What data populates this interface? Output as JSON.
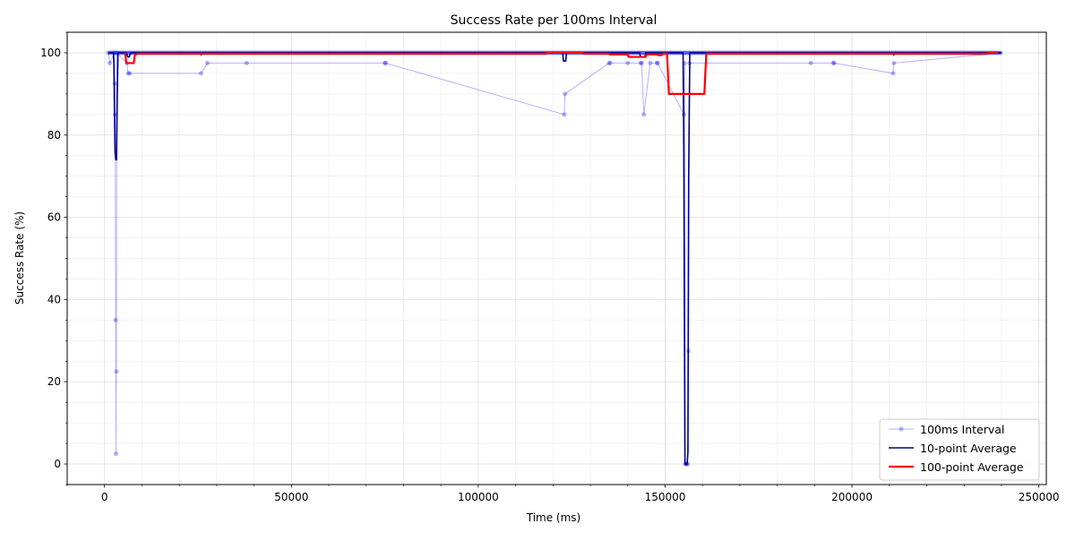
{
  "chart_data": {
    "type": "line",
    "title": "Success Rate per 100ms Interval",
    "xlabel": "Time (ms)",
    "ylabel": "Success Rate (%)",
    "xlim": [
      -10000,
      252000
    ],
    "ylim": [
      -5,
      105
    ],
    "x_ticks": [
      0,
      50000,
      100000,
      150000,
      200000,
      250000
    ],
    "x_tick_labels": [
      "0",
      "50000",
      "100000",
      "150000",
      "200000",
      "250000"
    ],
    "y_ticks": [
      0,
      20,
      40,
      60,
      80,
      100
    ],
    "y_tick_labels": [
      "0",
      "20",
      "40",
      "60",
      "80",
      "100"
    ],
    "x_minor_step": 10000,
    "y_minor_step": 5,
    "grid": true,
    "legend_position": "lower-right",
    "series": [
      {
        "name": "100ms Interval",
        "color": "#0000ff",
        "style": "line-with-markers",
        "base_value": 100,
        "x_range": [
          1000,
          240000
        ],
        "dips": [
          {
            "x": 1400,
            "y": 97.5
          },
          {
            "x": 2600,
            "y": 100
          },
          {
            "x": 2750,
            "y": 92.5
          },
          {
            "x": 2850,
            "y": 85
          },
          {
            "x": 2950,
            "y": 35
          },
          {
            "x": 3050,
            "y": 2.5
          },
          {
            "x": 3150,
            "y": 22.5
          },
          {
            "x": 3300,
            "y": 100
          },
          {
            "x": 6000,
            "y": 97.5
          },
          {
            "x": 6300,
            "y": 95
          },
          {
            "x": 6700,
            "y": 95
          },
          {
            "x": 25800,
            "y": 95
          },
          {
            "x": 27500,
            "y": 97.5
          },
          {
            "x": 38000,
            "y": 97.5
          },
          {
            "x": 75000,
            "y": 97.5
          },
          {
            "x": 75200,
            "y": 97.5
          },
          {
            "x": 123000,
            "y": 85
          },
          {
            "x": 123200,
            "y": 90
          },
          {
            "x": 135000,
            "y": 97.5
          },
          {
            "x": 135300,
            "y": 97.5
          },
          {
            "x": 140000,
            "y": 97.5
          },
          {
            "x": 143500,
            "y": 97.5
          },
          {
            "x": 143700,
            "y": 97.5
          },
          {
            "x": 144300,
            "y": 85
          },
          {
            "x": 146000,
            "y": 97.5
          },
          {
            "x": 147800,
            "y": 97.5
          },
          {
            "x": 148000,
            "y": 97.5
          },
          {
            "x": 155000,
            "y": 85
          },
          {
            "x": 155200,
            "y": 97.5
          },
          {
            "x": 155400,
            "y": 0
          },
          {
            "x": 155600,
            "y": 0
          },
          {
            "x": 155800,
            "y": 0
          },
          {
            "x": 156000,
            "y": 0
          },
          {
            "x": 156200,
            "y": 27.5
          },
          {
            "x": 156500,
            "y": 97.5
          },
          {
            "x": 189000,
            "y": 97.5
          },
          {
            "x": 195000,
            "y": 97.5
          },
          {
            "x": 195200,
            "y": 97.5
          },
          {
            "x": 211000,
            "y": 95
          },
          {
            "x": 211200,
            "y": 97.5
          }
        ]
      },
      {
        "name": "10-point Average",
        "color": "#00008b",
        "style": "line",
        "points": [
          [
            1000,
            100
          ],
          [
            2400,
            100
          ],
          [
            2500,
            97
          ],
          [
            2800,
            76
          ],
          [
            3000,
            74
          ],
          [
            3200,
            74
          ],
          [
            3400,
            90
          ],
          [
            3600,
            100
          ],
          [
            5800,
            100
          ],
          [
            6200,
            99
          ],
          [
            6600,
            99
          ],
          [
            7000,
            100
          ],
          [
            25600,
            100
          ],
          [
            25800,
            99.5
          ],
          [
            26000,
            100
          ],
          [
            122600,
            100
          ],
          [
            122800,
            98
          ],
          [
            123400,
            98
          ],
          [
            123600,
            100
          ],
          [
            143200,
            100
          ],
          [
            143400,
            99
          ],
          [
            144600,
            99
          ],
          [
            144800,
            100
          ],
          [
            154800,
            100
          ],
          [
            155000,
            75
          ],
          [
            155300,
            0
          ],
          [
            155900,
            0
          ],
          [
            156100,
            3
          ],
          [
            156300,
            70
          ],
          [
            156600,
            100
          ],
          [
            211000,
            100
          ],
          [
            211200,
            99.5
          ],
          [
            211400,
            100
          ],
          [
            240000,
            100
          ]
        ]
      },
      {
        "name": "100-point Average",
        "color": "#ff0000",
        "style": "line",
        "points": [
          [
            5500,
            100
          ],
          [
            5800,
            97.5
          ],
          [
            7800,
            97.5
          ],
          [
            8100,
            99.5
          ],
          [
            9000,
            99.8
          ],
          [
            118000,
            99.8
          ],
          [
            118200,
            100
          ],
          [
            128000,
            100
          ],
          [
            128200,
            99.8
          ],
          [
            135000,
            99.8
          ],
          [
            135200,
            99.6
          ],
          [
            140000,
            99.6
          ],
          [
            140200,
            99
          ],
          [
            144800,
            99
          ],
          [
            145000,
            99.6
          ],
          [
            148000,
            99.6
          ],
          [
            148200,
            99.4
          ],
          [
            149000,
            99.4
          ],
          [
            149500,
            99.8
          ],
          [
            150500,
            99.8
          ],
          [
            151000,
            90
          ],
          [
            160500,
            90
          ],
          [
            161000,
            99.8
          ],
          [
            236000,
            99.8
          ],
          [
            236200,
            100
          ],
          [
            239000,
            100
          ]
        ]
      }
    ]
  }
}
